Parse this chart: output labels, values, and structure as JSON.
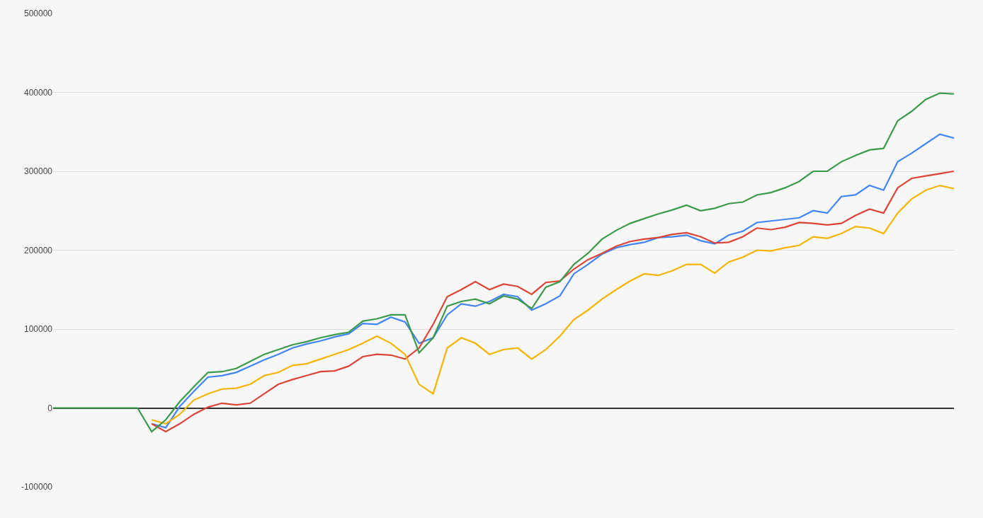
{
  "chart_data": {
    "type": "line",
    "categories": [
      null,
      null,
      null,
      null,
      null,
      null,
      null,
      null,
      null,
      null,
      null,
      null,
      null,
      null,
      null,
      null,
      null,
      null,
      null,
      null,
      null,
      null,
      null,
      null,
      null,
      null,
      null,
      null,
      null,
      null,
      null,
      null,
      null,
      null,
      null,
      null,
      null,
      null,
      null,
      null,
      null,
      null,
      null,
      null,
      null,
      null,
      null,
      null,
      null,
      null,
      null,
      null,
      null,
      null,
      null,
      null,
      null,
      null,
      null,
      null,
      null,
      null,
      null,
      null,
      null
    ],
    "series": [
      {
        "color": "#4285f4",
        "values": [
          null,
          null,
          null,
          null,
          null,
          null,
          null,
          -20000,
          -25000,
          2000,
          21000,
          39000,
          41000,
          45000,
          53000,
          61000,
          68000,
          76000,
          81000,
          85000,
          90000,
          94000,
          107000,
          106000,
          115000,
          109000,
          82000,
          89000,
          118000,
          132000,
          129000,
          135000,
          144000,
          141000,
          124000,
          132000,
          142000,
          170000,
          182000,
          195000,
          203000,
          207000,
          210000,
          216000,
          217000,
          219000,
          212000,
          208000,
          219000,
          224000,
          235000,
          237000,
          239000,
          241000,
          250000,
          247000,
          268000,
          270000,
          282000,
          276000,
          312000,
          323000,
          335000,
          347000,
          342000
        ]
      },
      {
        "color": "#db4437",
        "values": [
          null,
          null,
          null,
          null,
          null,
          null,
          null,
          -20000,
          -30000,
          -20000,
          -8000,
          1000,
          6000,
          4000,
          6000,
          18000,
          30000,
          36000,
          41000,
          46000,
          47000,
          53000,
          65000,
          68000,
          67000,
          62000,
          76000,
          106000,
          141000,
          150000,
          160000,
          150000,
          157000,
          154000,
          144000,
          159000,
          161000,
          176000,
          188000,
          196000,
          205000,
          211000,
          214000,
          216000,
          220000,
          222000,
          217000,
          209000,
          210000,
          217000,
          228000,
          226000,
          229000,
          235000,
          234000,
          232000,
          234000,
          244000,
          252000,
          247000,
          279000,
          291000,
          294000,
          297000,
          300000
        ]
      },
      {
        "color": "#f4b400",
        "values": [
          null,
          null,
          null,
          null,
          null,
          null,
          null,
          -15000,
          -20000,
          -8000,
          10000,
          18000,
          24000,
          25000,
          30000,
          41000,
          45000,
          54000,
          56000,
          62000,
          68000,
          74000,
          82000,
          91000,
          82000,
          68000,
          30000,
          18000,
          76000,
          89000,
          82000,
          68000,
          74000,
          76000,
          62000,
          74000,
          91000,
          112000,
          124000,
          138000,
          150000,
          161000,
          170000,
          168000,
          174000,
          182000,
          182000,
          171000,
          185000,
          191000,
          200000,
          199000,
          203000,
          206000,
          217000,
          215000,
          221000,
          230000,
          228000,
          221000,
          247000,
          265000,
          276000,
          282000,
          278000
        ]
      },
      {
        "color": "#3a9a4a",
        "values": [
          0,
          0,
          0,
          0,
          0,
          0,
          0,
          -30000,
          -15000,
          8000,
          27000,
          45000,
          46000,
          50000,
          59000,
          68000,
          74000,
          80000,
          84000,
          89000,
          93000,
          96000,
          110000,
          113000,
          118000,
          118000,
          70000,
          89000,
          129000,
          135000,
          138000,
          132000,
          142000,
          138000,
          126000,
          153000,
          160000,
          182000,
          196000,
          214000,
          225000,
          234000,
          240000,
          246000,
          251000,
          257000,
          250000,
          253000,
          259000,
          261000,
          270000,
          273000,
          279000,
          287000,
          300000,
          300000,
          312000,
          320000,
          327000,
          329000,
          364000,
          376000,
          391000,
          399000,
          398000
        ]
      }
    ],
    "ylim": [
      -100000,
      500000
    ],
    "yticks": [
      -100000,
      0,
      100000,
      200000,
      300000,
      400000,
      500000
    ],
    "grid": "y",
    "tick_labels": "y",
    "marker": "none",
    "line_style": "solid"
  }
}
